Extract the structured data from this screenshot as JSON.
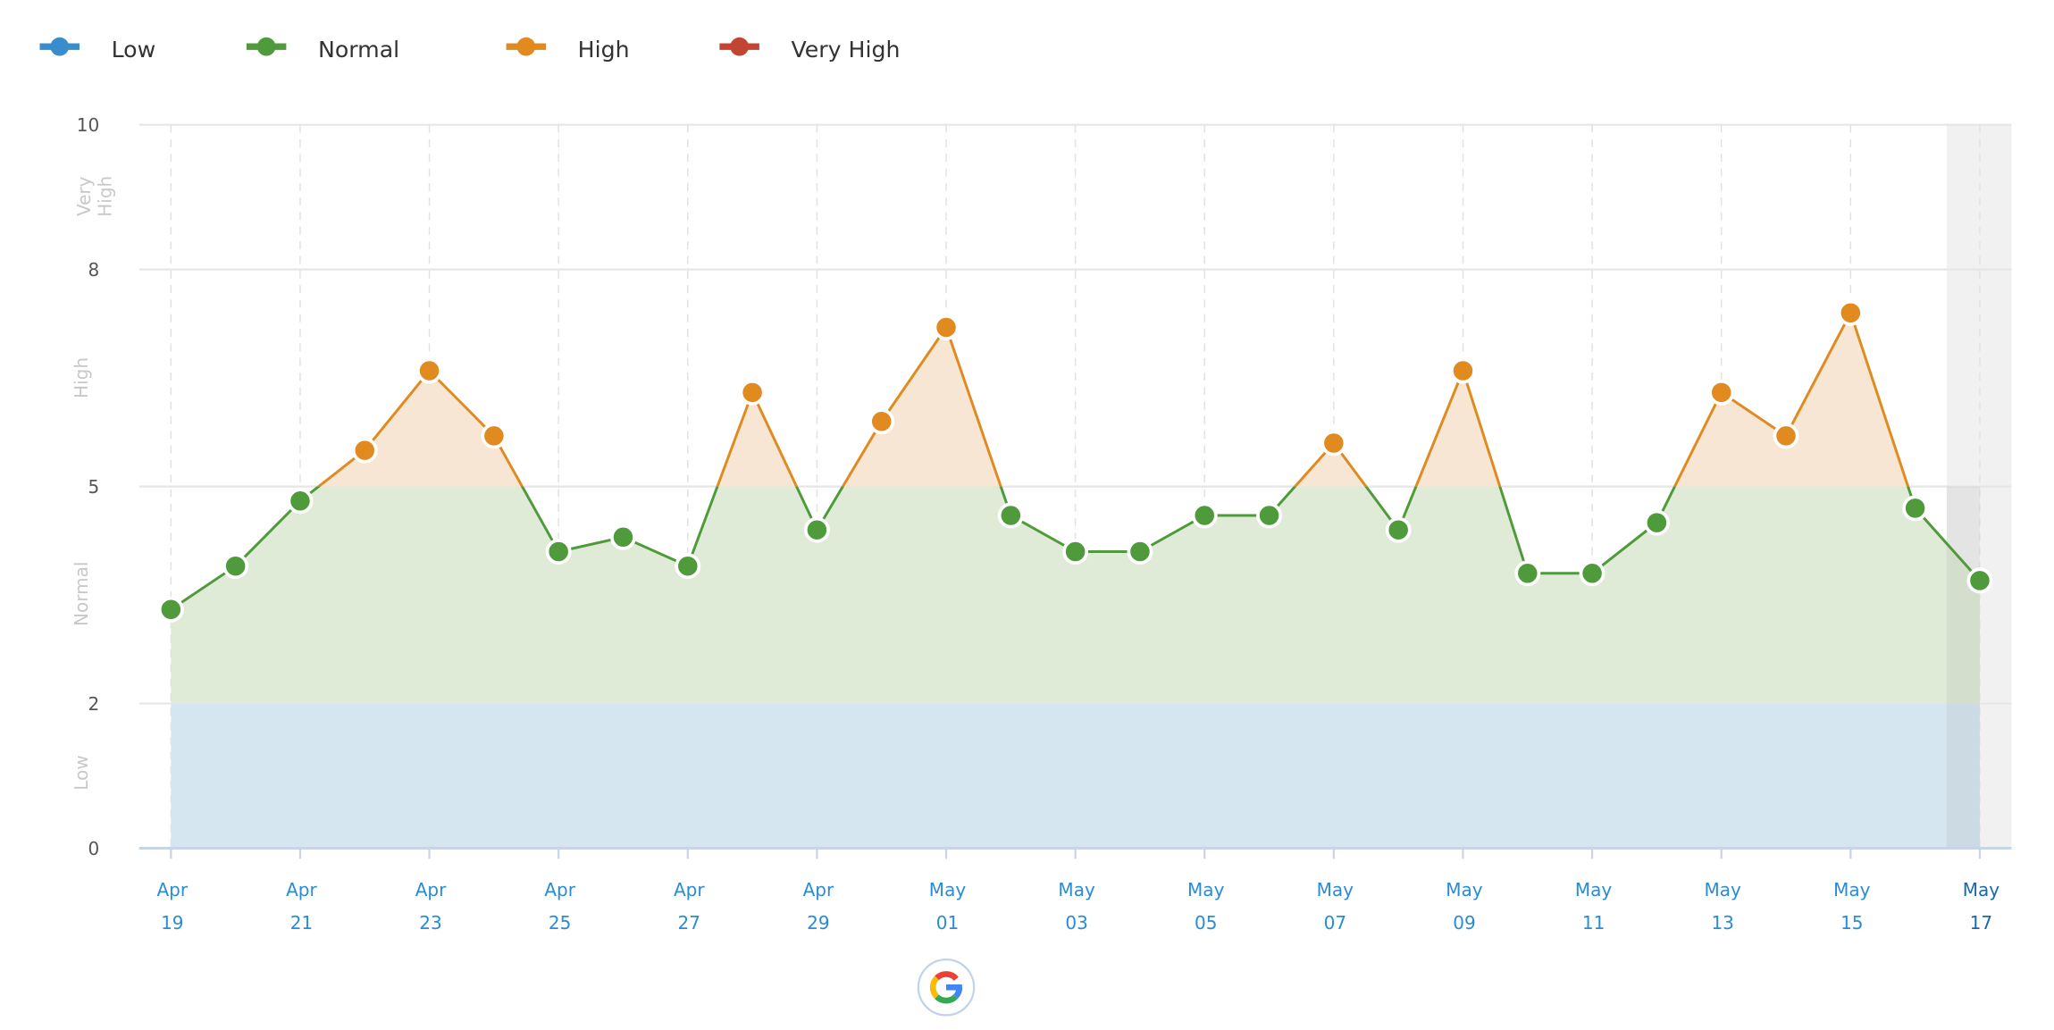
{
  "chart_data": {
    "type": "line",
    "legend": [
      {
        "name": "Low",
        "color": "#3a8dcc"
      },
      {
        "name": "Normal",
        "color": "#4f9a3b"
      },
      {
        "name": "High",
        "color": "#e08a20"
      },
      {
        "name": "Very High",
        "color": "#c24433"
      }
    ],
    "legend_placement": "top-left",
    "ylim": [
      0,
      10
    ],
    "y_ticks": [
      "0",
      "2",
      "5",
      "8",
      "10"
    ],
    "y_tick_values": [
      0,
      2,
      5,
      8,
      10
    ],
    "zones": [
      {
        "label": "Low",
        "from": 0,
        "to": 2,
        "color": "#d6e6f0"
      },
      {
        "label": "Normal",
        "from": 2,
        "to": 5,
        "color": "#dfead7"
      },
      {
        "label": "High",
        "from": 5,
        "to": 8,
        "color": "#f6e6d3"
      },
      {
        "label": "Very High",
        "from": 8,
        "to": 10
      }
    ],
    "x": [
      "Apr 19",
      "Apr 20",
      "Apr 21",
      "Apr 22",
      "Apr 23",
      "Apr 24",
      "Apr 25",
      "Apr 26",
      "Apr 27",
      "Apr 28",
      "Apr 29",
      "Apr 30",
      "May 01",
      "May 02",
      "May 03",
      "May 04",
      "May 05",
      "May 06",
      "May 07",
      "May 08",
      "May 09",
      "May 10",
      "May 11",
      "May 12",
      "May 13",
      "May 14",
      "May 15",
      "May 16",
      "May 17"
    ],
    "values": [
      3.3,
      3.9,
      4.8,
      5.5,
      6.6,
      5.7,
      4.1,
      4.3,
      3.9,
      6.3,
      4.4,
      5.9,
      7.2,
      4.6,
      4.1,
      4.1,
      4.6,
      4.6,
      5.6,
      4.4,
      6.6,
      3.8,
      3.8,
      4.5,
      6.3,
      5.7,
      7.4,
      4.7,
      3.7
    ],
    "x_tick_labels": [
      [
        "Apr",
        "19"
      ],
      [
        "Apr",
        "21"
      ],
      [
        "Apr",
        "23"
      ],
      [
        "Apr",
        "25"
      ],
      [
        "Apr",
        "27"
      ],
      [
        "Apr",
        "29"
      ],
      [
        "May",
        "01"
      ],
      [
        "May",
        "03"
      ],
      [
        "May",
        "05"
      ],
      [
        "May",
        "07"
      ],
      [
        "May",
        "09"
      ],
      [
        "May",
        "11"
      ],
      [
        "May",
        "13"
      ],
      [
        "May",
        "15"
      ],
      [
        "May",
        "17"
      ]
    ],
    "grid": true,
    "annotation": {
      "date": "May 01",
      "icon": "google-icon"
    },
    "highlighted_last_day": "May 17"
  }
}
